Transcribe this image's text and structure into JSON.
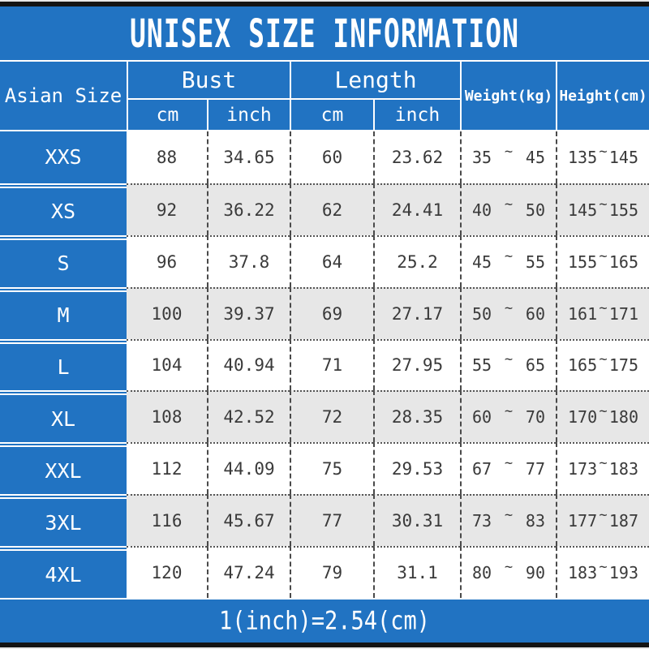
{
  "title": "UNISEX SIZE INFORMATION",
  "footer_note": "1(inch)=2.54(cm)",
  "colors": {
    "header_blue": "#2173c2",
    "alt_row_gray": "#e7e7e7",
    "data_text": "#3a3a3a",
    "frame_bar_black": "#141414",
    "line_white": "#ffffff"
  },
  "chart_data": {
    "type": "table",
    "title": "UNISEX SIZE INFORMATION",
    "size_col_header": "Asian Size",
    "tilde": "~",
    "column_groups": [
      {
        "label": "Bust",
        "subs": [
          "cm",
          "inch"
        ]
      },
      {
        "label": "Length",
        "subs": [
          "cm",
          "inch"
        ]
      }
    ],
    "single_headers": [
      "Weight(kg)",
      "Height(cm)"
    ],
    "rows": [
      {
        "size": "XXS",
        "bust_cm": "88",
        "bust_inch": "34.65",
        "length_cm": "60",
        "length_inch": "23.62",
        "weight": {
          "min": "35",
          "max": "45"
        },
        "height": {
          "min": "135",
          "max": "145"
        }
      },
      {
        "size": "XS",
        "bust_cm": "92",
        "bust_inch": "36.22",
        "length_cm": "62",
        "length_inch": "24.41",
        "weight": {
          "min": "40",
          "max": "50"
        },
        "height": {
          "min": "145",
          "max": "155"
        }
      },
      {
        "size": "S",
        "bust_cm": "96",
        "bust_inch": "37.8",
        "length_cm": "64",
        "length_inch": "25.2",
        "weight": {
          "min": "45",
          "max": "55"
        },
        "height": {
          "min": "155",
          "max": "165"
        }
      },
      {
        "size": "M",
        "bust_cm": "100",
        "bust_inch": "39.37",
        "length_cm": "69",
        "length_inch": "27.17",
        "weight": {
          "min": "50",
          "max": "60"
        },
        "height": {
          "min": "161",
          "max": "171"
        }
      },
      {
        "size": "L",
        "bust_cm": "104",
        "bust_inch": "40.94",
        "length_cm": "71",
        "length_inch": "27.95",
        "weight": {
          "min": "55",
          "max": "65"
        },
        "height": {
          "min": "165",
          "max": "175"
        }
      },
      {
        "size": "XL",
        "bust_cm": "108",
        "bust_inch": "42.52",
        "length_cm": "72",
        "length_inch": "28.35",
        "weight": {
          "min": "60",
          "max": "70"
        },
        "height": {
          "min": "170",
          "max": "180"
        }
      },
      {
        "size": "XXL",
        "bust_cm": "112",
        "bust_inch": "44.09",
        "length_cm": "75",
        "length_inch": "29.53",
        "weight": {
          "min": "67",
          "max": "77"
        },
        "height": {
          "min": "173",
          "max": "183"
        }
      },
      {
        "size": "3XL",
        "bust_cm": "116",
        "bust_inch": "45.67",
        "length_cm": "77",
        "length_inch": "30.31",
        "weight": {
          "min": "73",
          "max": "83"
        },
        "height": {
          "min": "177",
          "max": "187"
        }
      },
      {
        "size": "4XL",
        "bust_cm": "120",
        "bust_inch": "47.24",
        "length_cm": "79",
        "length_inch": "31.1",
        "weight": {
          "min": "80",
          "max": "90"
        },
        "height": {
          "min": "183",
          "max": "193"
        }
      }
    ]
  }
}
